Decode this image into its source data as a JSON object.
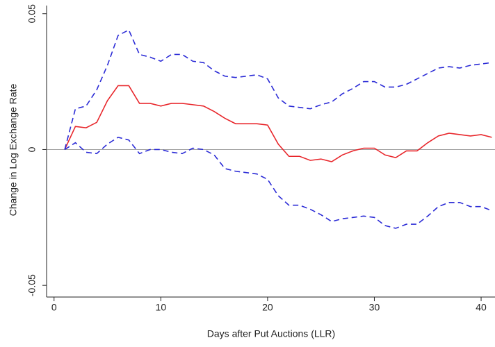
{
  "chart_data": {
    "type": "line",
    "xlabel": "Days after Put Auctions (LLR)",
    "ylabel": "Change in Log Exchange Rate",
    "x": [
      1,
      2,
      3,
      4,
      5,
      6,
      7,
      8,
      9,
      10,
      11,
      12,
      13,
      14,
      15,
      16,
      17,
      18,
      19,
      20,
      21,
      22,
      23,
      24,
      25,
      26,
      27,
      28,
      29,
      30,
      31,
      32,
      33,
      34,
      35,
      36,
      37,
      38,
      39,
      40,
      41
    ],
    "series": [
      {
        "color": "#e8262b",
        "style": "solid",
        "values": [
          0,
          0.0085,
          0.008,
          0.01,
          0.018,
          0.0235,
          0.0235,
          0.017,
          0.017,
          0.016,
          0.017,
          0.017,
          0.0165,
          0.016,
          0.014,
          0.0115,
          0.0095,
          0.0095,
          0.0095,
          0.009,
          0.002,
          -0.0025,
          -0.0025,
          -0.004,
          -0.0035,
          -0.0045,
          -0.002,
          -0.0005,
          0.0005,
          0.0005,
          -0.002,
          -0.003,
          -0.0005,
          -0.0005,
          0.0025,
          0.005,
          0.006,
          0.0055,
          0.005,
          0.0055,
          0.0045
        ]
      },
      {
        "color": "#2b2bd6",
        "style": "dashed",
        "values": [
          0,
          0.015,
          0.016,
          0.022,
          0.031,
          0.042,
          0.044,
          0.035,
          0.034,
          0.0325,
          0.035,
          0.035,
          0.0325,
          0.032,
          0.029,
          0.027,
          0.0265,
          0.027,
          0.0275,
          0.026,
          0.019,
          0.016,
          0.0155,
          0.015,
          0.0165,
          0.0175,
          0.0205,
          0.0225,
          0.025,
          0.025,
          0.023,
          0.023,
          0.024,
          0.026,
          0.028,
          0.03,
          0.0305,
          0.03,
          0.031,
          0.0315,
          0.032
        ]
      },
      {
        "color": "#2b2bd6",
        "style": "dashed",
        "values": [
          0,
          0.0025,
          -0.001,
          -0.0015,
          0.002,
          0.0045,
          0.0035,
          -0.0015,
          0,
          0,
          -0.001,
          -0.0015,
          0.0005,
          0,
          -0.002,
          -0.007,
          -0.008,
          -0.0085,
          -0.009,
          -0.011,
          -0.017,
          -0.0205,
          -0.0205,
          -0.022,
          -0.024,
          -0.0265,
          -0.0255,
          -0.025,
          -0.0245,
          -0.025,
          -0.028,
          -0.029,
          -0.0275,
          -0.0275,
          -0.0245,
          -0.021,
          -0.0195,
          -0.0195,
          -0.021,
          -0.021,
          -0.0225
        ]
      }
    ],
    "reference_line": 0,
    "reference_color": "#a0a0a0",
    "xlim": [
      -0.7,
      41.3
    ],
    "xticks": [
      0,
      10,
      20,
      30,
      40
    ],
    "ylim": [
      -0.0543,
      0.053
    ],
    "yticks": [
      0.05,
      0,
      -0.05
    ]
  }
}
